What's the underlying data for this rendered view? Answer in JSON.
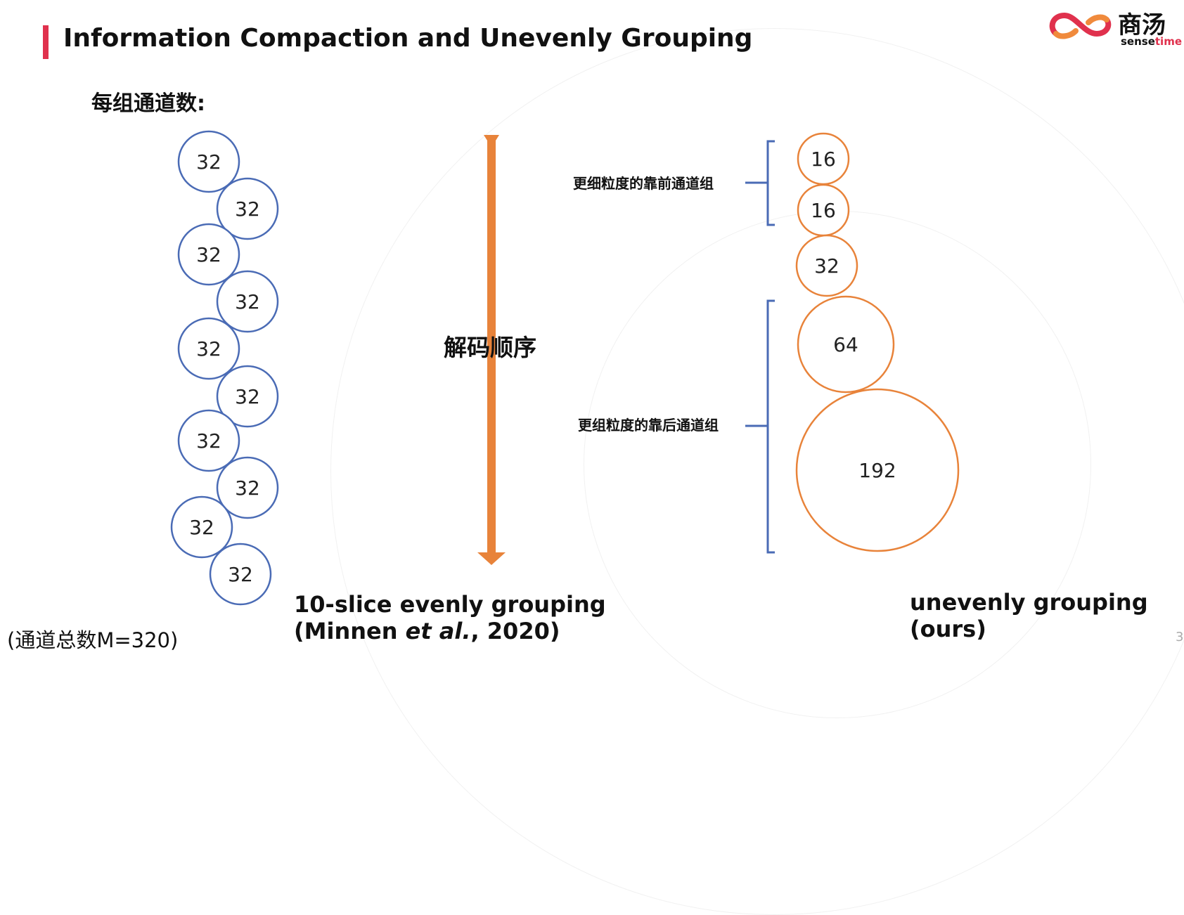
{
  "slide": {
    "title": "Information Compaction and Unevenly Grouping",
    "subtitle": "每组通道数:",
    "page_number": "3",
    "accent_color": "#e0314d"
  },
  "logo": {
    "name_cn": "商汤",
    "name_en_prefix": "sense",
    "name_en_suffix": "time",
    "icon": "infinity-logo-icon"
  },
  "left_panel": {
    "circle_color": "#4a6bb5",
    "circles": [
      "32",
      "32",
      "32",
      "32",
      "32",
      "32",
      "32",
      "32",
      "32",
      "32"
    ],
    "caption_line1": "10-slice evenly grouping",
    "caption_line2_prefix": "(Minnen ",
    "caption_line2_italic": "et al.",
    "caption_line2_suffix": ", 2020)"
  },
  "center": {
    "arrow_label": "解码顺序",
    "arrow_color": "#e8833a",
    "arrow_icon": "down-arrow-icon"
  },
  "right_panel": {
    "circle_color": "#e8833a",
    "bracket_color": "#4a6bb5",
    "circles": [
      "16",
      "16",
      "32",
      "64",
      "192"
    ],
    "bracket_top_label": "更细粒度的靠前通道组",
    "bracket_bottom_label": "更组粒度的靠后通道组",
    "caption_line1": "unevenly grouping",
    "caption_line2": "(ours)"
  },
  "footnote": "(通道总数M=320)"
}
